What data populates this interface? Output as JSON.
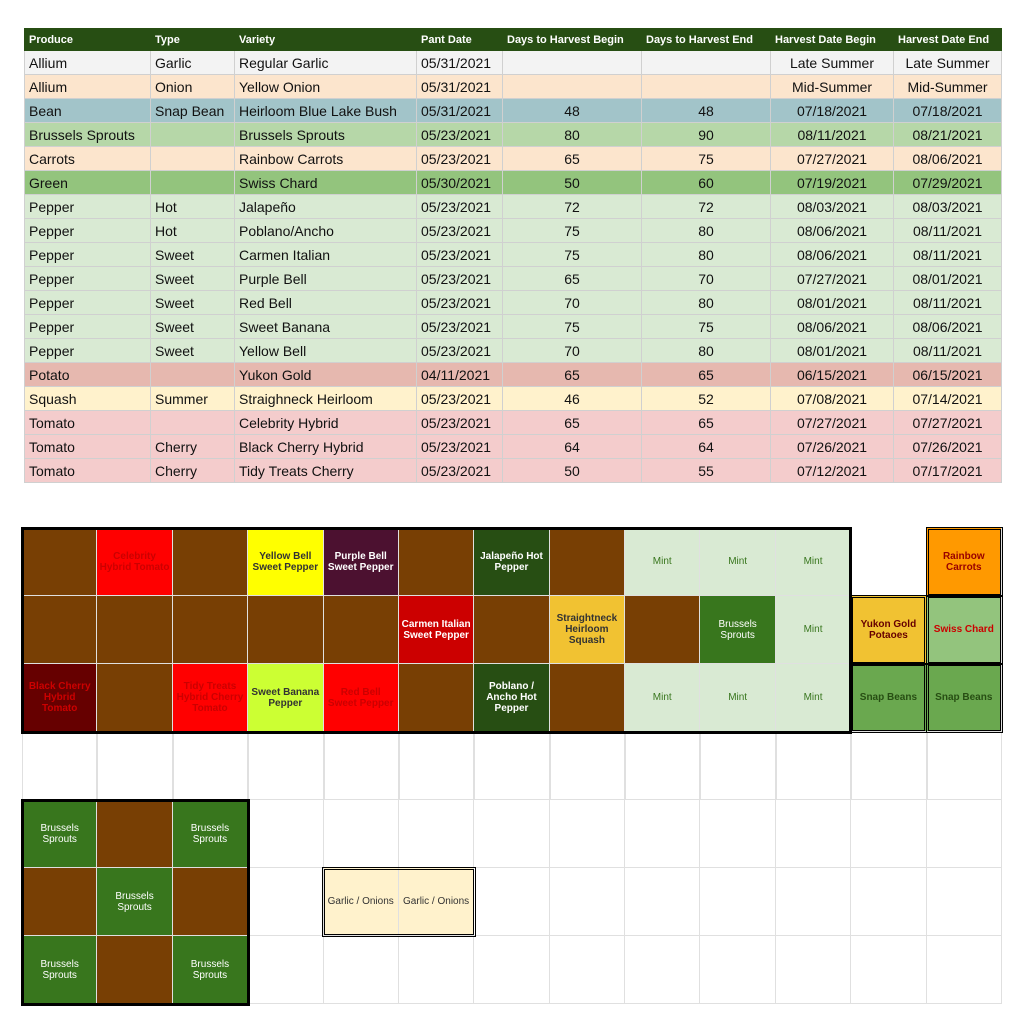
{
  "table": {
    "header_color": "#274e13",
    "headers": [
      "Produce",
      "Type",
      "Variety",
      "Pant Date",
      "Days to Harvest Begin",
      "Days to Harvest End",
      "Harvest Date Begin",
      "Harvest Date End"
    ],
    "rows": [
      {
        "color": "#f3f3f3",
        "cells": [
          "Allium",
          "Garlic",
          "Regular Garlic",
          "05/31/2021",
          null,
          null,
          "Late Summer",
          "Late Summer"
        ]
      },
      {
        "color": "#fce5cd",
        "cells": [
          "Allium",
          "Onion",
          "Yellow Onion",
          "05/31/2021",
          null,
          null,
          "Mid-Summer",
          "Mid-Summer"
        ]
      },
      {
        "color": "#a2c4c9",
        "cells": [
          "Bean",
          "Snap Bean",
          "Heirloom Blue Lake Bush",
          "05/31/2021",
          48,
          48,
          "07/18/2021",
          "07/18/2021"
        ]
      },
      {
        "color": "#b6d7a8",
        "cells": [
          "Brussels Sprouts",
          null,
          "Brussels Sprouts",
          "05/23/2021",
          80,
          90,
          "08/11/2021",
          "08/21/2021"
        ]
      },
      {
        "color": "#fce5cd",
        "cells": [
          "Carrots",
          null,
          "Rainbow Carrots",
          "05/23/2021",
          65,
          75,
          "07/27/2021",
          "08/06/2021"
        ]
      },
      {
        "color": "#93c47d",
        "cells": [
          "Green",
          null,
          "Swiss Chard",
          "05/30/2021",
          50,
          60,
          "07/19/2021",
          "07/29/2021"
        ]
      },
      {
        "color": "#d9ead3",
        "cells": [
          "Pepper",
          "Hot",
          "Jalapeño",
          "05/23/2021",
          72,
          72,
          "08/03/2021",
          "08/03/2021"
        ]
      },
      {
        "color": "#d9ead3",
        "cells": [
          "Pepper",
          "Hot",
          "Poblano/Ancho",
          "05/23/2021",
          75,
          80,
          "08/06/2021",
          "08/11/2021"
        ]
      },
      {
        "color": "#d9ead3",
        "cells": [
          "Pepper",
          "Sweet",
          "Carmen Italian",
          "05/23/2021",
          75,
          80,
          "08/06/2021",
          "08/11/2021"
        ]
      },
      {
        "color": "#d9ead3",
        "cells": [
          "Pepper",
          "Sweet",
          "Purple Bell",
          "05/23/2021",
          65,
          70,
          "07/27/2021",
          "08/01/2021"
        ]
      },
      {
        "color": "#d9ead3",
        "cells": [
          "Pepper",
          "Sweet",
          "Red Bell",
          "05/23/2021",
          70,
          80,
          "08/01/2021",
          "08/11/2021"
        ]
      },
      {
        "color": "#d9ead3",
        "cells": [
          "Pepper",
          "Sweet",
          "Sweet Banana",
          "05/23/2021",
          75,
          75,
          "08/06/2021",
          "08/06/2021"
        ]
      },
      {
        "color": "#d9ead3",
        "cells": [
          "Pepper",
          "Sweet",
          "Yellow Bell",
          "05/23/2021",
          70,
          80,
          "08/01/2021",
          "08/11/2021"
        ]
      },
      {
        "color": "#e6b8af",
        "cells": [
          "Potato",
          null,
          "Yukon Gold",
          "04/11/2021",
          65,
          65,
          "06/15/2021",
          "06/15/2021"
        ]
      },
      {
        "color": "#fff2cc",
        "cells": [
          "Squash",
          "Summer",
          "Straighneck Heirloom",
          "05/23/2021",
          46,
          52,
          "07/08/2021",
          "07/14/2021"
        ]
      },
      {
        "color": "#f4cccc",
        "cells": [
          "Tomato",
          null,
          "Celebrity Hybrid",
          "05/23/2021",
          65,
          65,
          "07/27/2021",
          "07/27/2021"
        ]
      },
      {
        "color": "#f4cccc",
        "cells": [
          "Tomato",
          "Cherry",
          "Black Cherry Hybrid",
          "05/23/2021",
          64,
          64,
          "07/26/2021",
          "07/26/2021"
        ]
      },
      {
        "color": "#f4cccc",
        "cells": [
          "Tomato",
          "Cherry",
          "Tidy Treats Cherry",
          "05/23/2021",
          50,
          55,
          "07/12/2021",
          "07/17/2021"
        ]
      }
    ]
  },
  "grid": {
    "rows": [
      [
        {
          "bg": "#783f04"
        },
        {
          "bg": "#ff0000",
          "fg": "#cc0000",
          "bold": true,
          "label": "Celebrity Hybrid Tomato"
        },
        {
          "bg": "#783f04"
        },
        {
          "bg": "#ffff00",
          "fg": "#333333",
          "bold": true,
          "label": "Yellow Bell Sweet Pepper"
        },
        {
          "bg": "#4c1130",
          "fg": "#ffffff",
          "bold": true,
          "label": "Purple Bell Sweet Pepper"
        },
        {
          "bg": "#783f04"
        },
        {
          "bg": "#274e13",
          "fg": "#ffffff",
          "bold": true,
          "label": "Jalapeño Hot Pepper"
        },
        {
          "bg": "#783f04"
        },
        {
          "bg": "#d9ead3",
          "fg": "#38761d",
          "label": "Mint"
        },
        {
          "bg": "#d9ead3",
          "fg": "#38761d",
          "label": "Mint"
        },
        {
          "bg": "#d9ead3",
          "fg": "#38761d",
          "label": "Mint"
        },
        null,
        {
          "bg": "#ff9900",
          "fg": "#990000",
          "bold": true,
          "label": "Rainbow Carrots"
        }
      ],
      [
        {
          "bg": "#783f04"
        },
        {
          "bg": "#783f04"
        },
        {
          "bg": "#783f04"
        },
        {
          "bg": "#783f04"
        },
        {
          "bg": "#783f04"
        },
        {
          "bg": "#cc0000",
          "fg": "#ffffff",
          "bold": true,
          "label": "Carmen Italian Sweet Pepper"
        },
        {
          "bg": "#783f04"
        },
        {
          "bg": "#f1c232",
          "fg": "#333333",
          "bold": true,
          "label": "Straightneck Heirloom Squash"
        },
        {
          "bg": "#783f04"
        },
        {
          "bg": "#38761d",
          "fg": "#ffffff",
          "label": "Brussels Sprouts"
        },
        {
          "bg": "#d9ead3",
          "fg": "#38761d",
          "label": "Mint"
        },
        {
          "bg": "#f1c232",
          "fg": "#660000",
          "bold": true,
          "label": "Yukon Gold Potaoes"
        },
        {
          "bg": "#93c47d",
          "fg": "#cc0000",
          "bold": true,
          "label": "Swiss Chard"
        }
      ],
      [
        {
          "bg": "#660000",
          "fg": "#cc0000",
          "bold": true,
          "label": "Black Cherry Hybrid Tomato"
        },
        {
          "bg": "#783f04"
        },
        {
          "bg": "#ff0000",
          "fg": "#cc0000",
          "bold": true,
          "label": "Tidy Treats Hybrid Cherry Tomato"
        },
        {
          "bg": "#ccff33",
          "fg": "#333333",
          "bold": true,
          "label": "Sweet Banana Pepper"
        },
        {
          "bg": "#ff0000",
          "fg": "#cc0000",
          "bold": true,
          "label": "Red Bell Sweet Pepper"
        },
        {
          "bg": "#783f04"
        },
        {
          "bg": "#274e13",
          "fg": "#ffffff",
          "bold": true,
          "label": "Poblano / Ancho Hot Pepper"
        },
        {
          "bg": "#783f04"
        },
        {
          "bg": "#d9ead3",
          "fg": "#38761d",
          "label": "Mint"
        },
        {
          "bg": "#d9ead3",
          "fg": "#38761d",
          "label": "Mint"
        },
        {
          "bg": "#d9ead3",
          "fg": "#38761d",
          "label": "Mint"
        },
        {
          "bg": "#6aa84f",
          "fg": "#274e13",
          "bold": true,
          "label": "Snap Beans"
        },
        {
          "bg": "#6aa84f",
          "fg": "#274e13",
          "bold": true,
          "label": "Snap Beans"
        }
      ],
      [
        null,
        null,
        null,
        null,
        null,
        null,
        null,
        null,
        null,
        null,
        null,
        null,
        null
      ],
      [
        {
          "bg": "#38761d",
          "fg": "#ffffff",
          "label": "Brussels Sprouts"
        },
        {
          "bg": "#783f04"
        },
        {
          "bg": "#38761d",
          "fg": "#ffffff",
          "label": "Brussels Sprouts"
        },
        null,
        null,
        null,
        null,
        null,
        null,
        null,
        null,
        null,
        null
      ],
      [
        {
          "bg": "#783f04"
        },
        {
          "bg": "#38761d",
          "fg": "#ffffff",
          "label": "Brussels Sprouts"
        },
        {
          "bg": "#783f04"
        },
        null,
        {
          "bg": "#fff2cc",
          "fg": "#333333",
          "label": "Garlic / Onions"
        },
        {
          "bg": "#fff2cc",
          "fg": "#333333",
          "label": "Garlic / Onions"
        },
        null,
        null,
        null,
        null,
        null,
        null,
        null
      ],
      [
        {
          "bg": "#38761d",
          "fg": "#ffffff",
          "label": "Brussels Sprouts"
        },
        {
          "bg": "#783f04"
        },
        {
          "bg": "#38761d",
          "fg": "#ffffff",
          "label": "Brussels Sprouts"
        },
        null,
        null,
        null,
        null,
        null,
        null,
        null,
        null,
        null,
        null
      ]
    ]
  }
}
